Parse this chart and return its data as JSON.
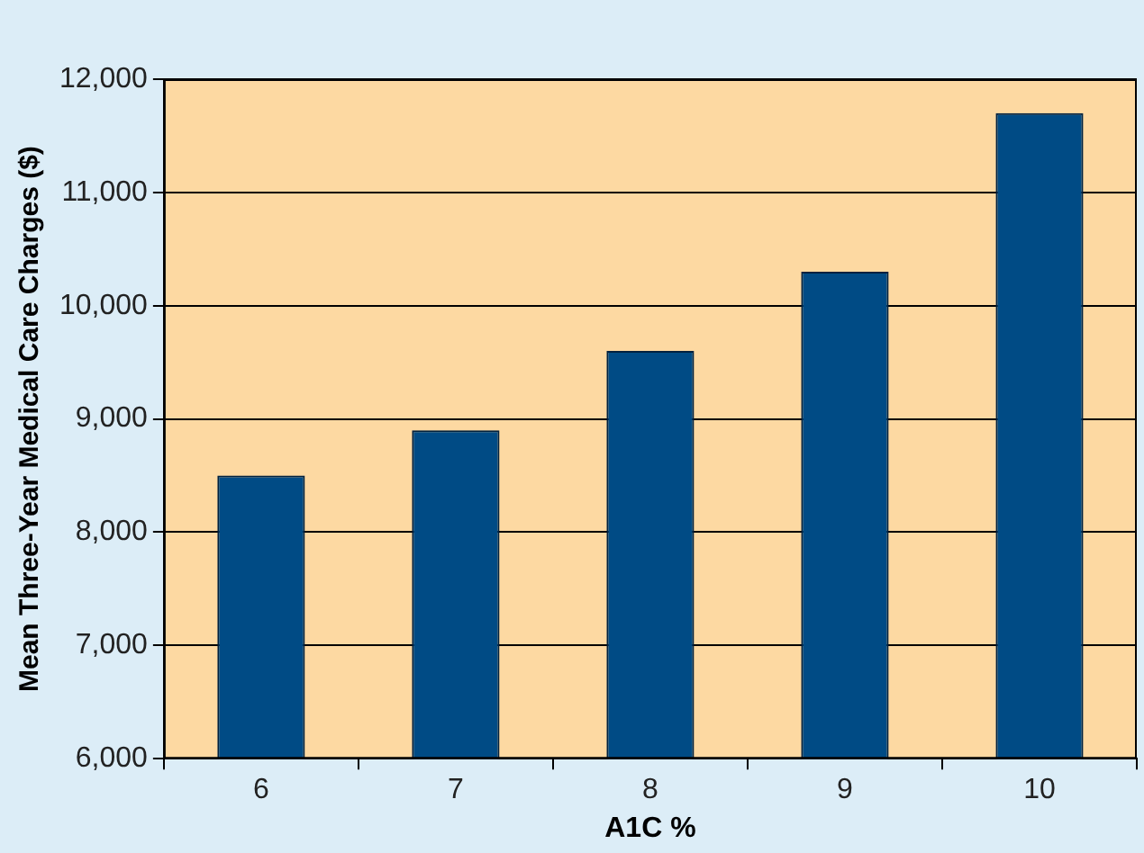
{
  "chart_data": {
    "type": "bar",
    "xlabel": "A1C %",
    "ylabel": "Mean Three-Year Medical Care Charges ($)",
    "categories": [
      "6",
      "7",
      "8",
      "9",
      "10"
    ],
    "values": [
      8500,
      8900,
      9600,
      10300,
      11700
    ],
    "color": "#004b85",
    "ylim": [
      6000,
      12000
    ],
    "yticks": [
      {
        "value": 6000,
        "label": "6,000"
      },
      {
        "value": 7000,
        "label": "7,000"
      },
      {
        "value": 8000,
        "label": "8,000"
      },
      {
        "value": 9000,
        "label": "9,000"
      },
      {
        "value": 10000,
        "label": "10,000"
      },
      {
        "value": 11000,
        "label": "11,000"
      },
      {
        "value": 12000,
        "label": "12,000"
      }
    ],
    "grid": "y"
  }
}
